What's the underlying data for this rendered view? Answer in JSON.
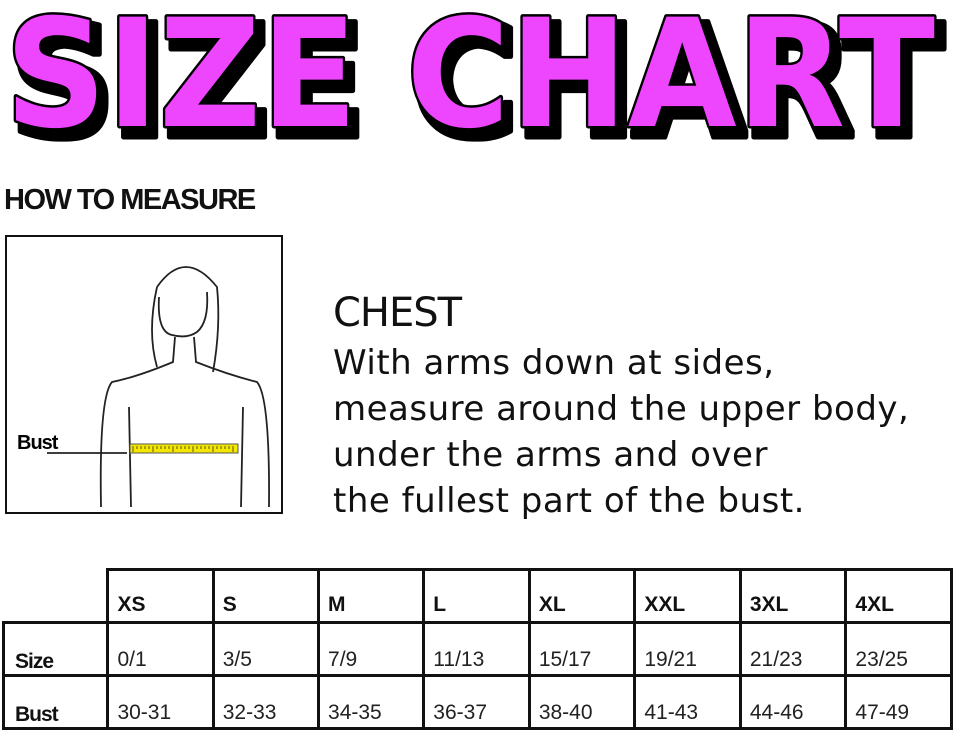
{
  "title": "SIZE CHART",
  "colors": {
    "title_fill": "#ee44ff",
    "outline": "#000000",
    "tape": "#f5e800"
  },
  "how_to_measure": "HOW TO MEASURE",
  "figure": {
    "label": "Bust"
  },
  "chest": {
    "heading": "CHEST",
    "lines": [
      "With arms down at sides,",
      "measure around the upper body,",
      "under the arms and over",
      "the fullest part of the bust."
    ]
  },
  "table": {
    "sizes": [
      "XS",
      "S",
      "M",
      "L",
      "XL",
      "XXL",
      "3XL",
      "4XL"
    ],
    "rows": [
      {
        "label": "Size",
        "values": [
          "0/1",
          "3/5",
          "7/9",
          "11/13",
          "15/17",
          "19/21",
          "21/23",
          "23/25"
        ]
      },
      {
        "label": "Bust",
        "values": [
          "30-31",
          "32-33",
          "34-35",
          "36-37",
          "38-40",
          "41-43",
          "44-46",
          "47-49"
        ]
      }
    ]
  }
}
